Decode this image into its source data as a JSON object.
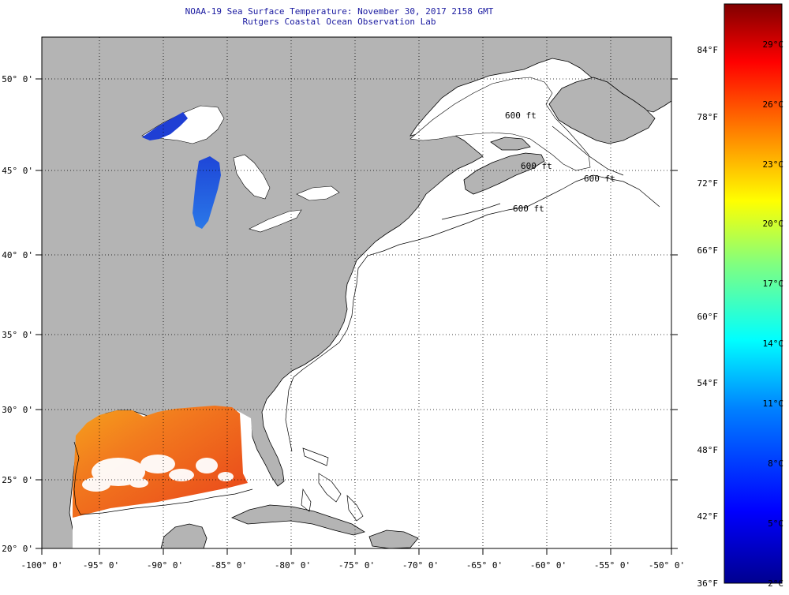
{
  "header": {
    "line1": "NOAA-19 Sea Surface Temperature:  November 30, 2017 2158 GMT",
    "line2": "Rutgers Coastal Ocean Observation Lab"
  },
  "map": {
    "lon_range": [
      -100,
      -50
    ],
    "lat_range": [
      20,
      52.5
    ],
    "lon_ticks": [
      "-100° 0'",
      "-95° 0'",
      "-90° 0'",
      "-85° 0'",
      "-80° 0'",
      "-75° 0'",
      "-70° 0'",
      "-65° 0'",
      "-60° 0'",
      "-55° 0'",
      "-50° 0'"
    ],
    "lat_ticks": [
      "20° 0'",
      "25° 0'",
      "30° 0'",
      "35° 0'",
      "40° 0'",
      "45° 0'",
      "50° 0'"
    ],
    "contour_labels": [
      "600 ft",
      "600 ft",
      "600 ft",
      "600 ft"
    ],
    "colors": {
      "land": "#b4b4b4",
      "ocean": "#ffffff",
      "coast": "#000000",
      "grid": "#000000"
    }
  },
  "colorbar": {
    "f_labels": [
      "84°F",
      "78°F",
      "72°F",
      "66°F",
      "60°F",
      "54°F",
      "48°F",
      "42°F",
      "36°F"
    ],
    "c_labels": [
      "29°C",
      "26°C",
      "23°C",
      "20°C",
      "17°C",
      "14°C",
      "11°C",
      "8°C",
      "5°C",
      "2°C"
    ],
    "colors": [
      "#00008f",
      "#0000ff",
      "#0080ff",
      "#00ffff",
      "#80ff80",
      "#ffff00",
      "#ff8000",
      "#ff0000",
      "#800000"
    ]
  }
}
